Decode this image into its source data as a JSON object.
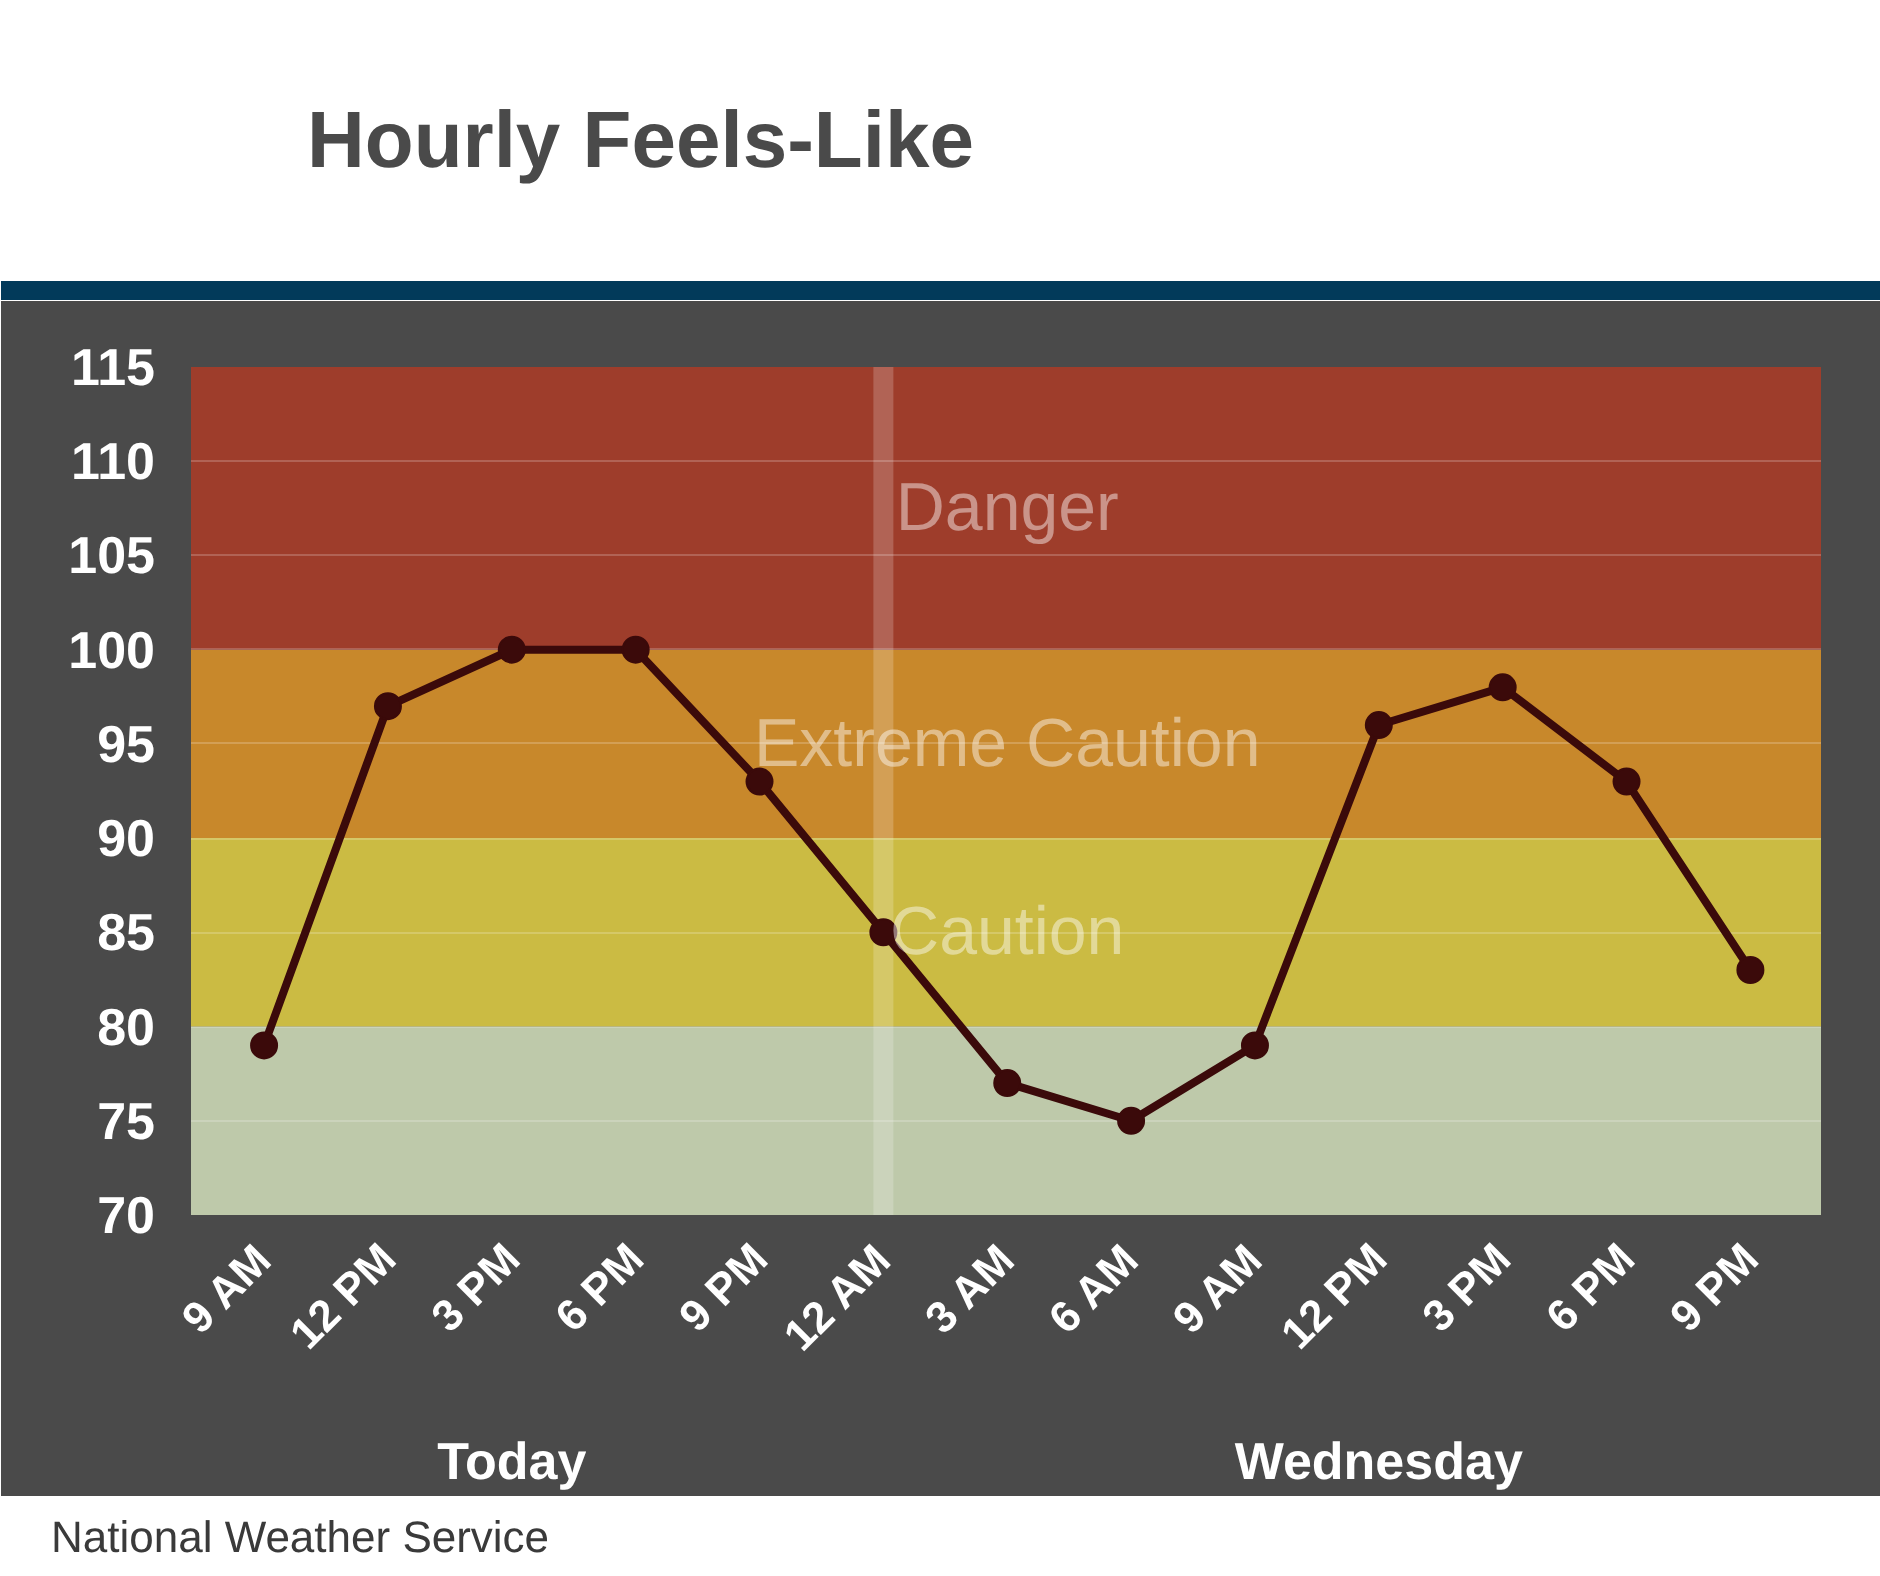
{
  "chart_data": {
    "type": "line",
    "title": "Hourly Feels-Like",
    "categories": [
      "9 AM",
      "12 PM",
      "3 PM",
      "6 PM",
      "9 PM",
      "12 AM",
      "3 AM",
      "6 AM",
      "9 AM",
      "12 PM",
      "3 PM",
      "6 PM",
      "9 PM"
    ],
    "series": [
      {
        "color": "#3b0a0a",
        "values": [
          79,
          97,
          100,
          100,
          93,
          85,
          77,
          75,
          79,
          96,
          98,
          93,
          83
        ]
      }
    ],
    "ylim": [
      70,
      115
    ],
    "yticks": [
      70,
      75,
      80,
      85,
      90,
      95,
      100,
      105,
      110,
      115
    ],
    "grid": "y",
    "marker": "circle",
    "line_style": "solid",
    "bands": [
      {
        "axis": "y",
        "from": 70,
        "to": 80,
        "color": "#bec9aa"
      },
      {
        "axis": "y",
        "from": 80,
        "to": 90,
        "label": "Caution",
        "color": "#cbbb43"
      },
      {
        "axis": "y",
        "from": 90,
        "to": 100,
        "label": "Extreme Caution",
        "color": "#c8882b"
      },
      {
        "axis": "y",
        "from": 100,
        "to": 115,
        "label": "Danger",
        "color": "#9e3d2b"
      }
    ],
    "ref_lines": [
      {
        "axis": "x",
        "value": "12 AM",
        "color": "#ffffff"
      }
    ],
    "annotations": [
      "Today",
      "Wednesday",
      "National Weather Service"
    ]
  }
}
